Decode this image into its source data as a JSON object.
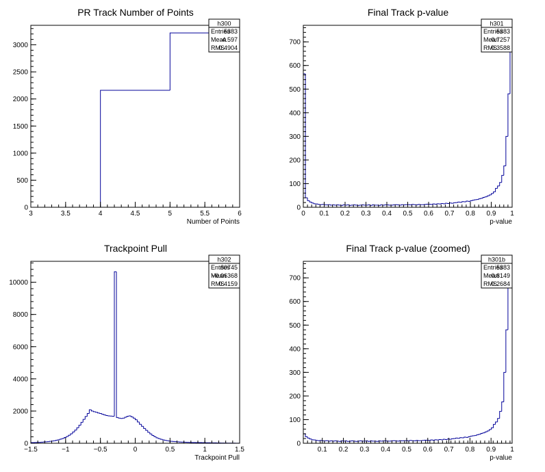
{
  "chart_data": [
    {
      "id": "h300",
      "type": "bar",
      "title": "PR Track Number of Points",
      "xlabel": "Number of Points",
      "ylabel": "",
      "xlim": [
        3,
        6
      ],
      "ylim": [
        0,
        3360
      ],
      "line_color": "#000099",
      "bin_edges": [
        3,
        4,
        5,
        6
      ],
      "values": [
        0,
        2160,
        3220
      ],
      "x_ticks": [
        {
          "v": 3,
          "label": "3"
        },
        {
          "v": 3.5,
          "label": "3.5"
        },
        {
          "v": 4,
          "label": "4"
        },
        {
          "v": 4.5,
          "label": "4.5"
        },
        {
          "v": 5,
          "label": "5"
        },
        {
          "v": 5.5,
          "label": "5.5"
        },
        {
          "v": 6,
          "label": "6"
        }
      ],
      "y_ticks": [
        {
          "v": 0,
          "label": "0"
        },
        {
          "v": 500,
          "label": "500"
        },
        {
          "v": 1000,
          "label": "1000"
        },
        {
          "v": 1500,
          "label": "1500"
        },
        {
          "v": 2000,
          "label": "2000"
        },
        {
          "v": 2500,
          "label": "2500"
        },
        {
          "v": 3000,
          "label": "3000"
        }
      ],
      "stats": {
        "name": "h300",
        "rows": [
          {
            "label": "Entries",
            "value": "5383"
          },
          {
            "label": "Mean",
            "value": "4.597"
          },
          {
            "label": "RMS",
            "value": "0.4904"
          }
        ]
      }
    },
    {
      "id": "h301",
      "type": "bar",
      "title": "Final Track p-value",
      "xlabel": "p-value",
      "ylabel": "",
      "xlim": [
        0,
        1
      ],
      "ylim": [
        0,
        770
      ],
      "line_color": "#000099",
      "bin_edges_uniform": {
        "start": 0,
        "width": 0.01,
        "count": 100
      },
      "values": [
        565,
        40,
        28,
        22,
        18,
        15,
        14,
        12,
        11,
        12,
        10,
        10,
        11,
        9,
        10,
        9,
        10,
        9,
        8,
        10,
        9,
        10,
        8,
        9,
        10,
        9,
        8,
        9,
        10,
        9,
        9,
        10,
        8,
        10,
        9,
        9,
        8,
        10,
        9,
        10,
        10,
        9,
        9,
        10,
        11,
        10,
        9,
        11,
        10,
        11,
        11,
        10,
        12,
        11,
        10,
        12,
        11,
        11,
        12,
        13,
        13,
        12,
        14,
        13,
        15,
        14,
        16,
        15,
        17,
        16,
        18,
        17,
        19,
        20,
        22,
        21,
        24,
        23,
        26,
        25,
        28,
        30,
        32,
        33,
        36,
        38,
        42,
        44,
        48,
        52,
        58,
        65,
        80,
        90,
        105,
        135,
        175,
        300,
        480,
        700
      ],
      "x_ticks": [
        {
          "v": 0,
          "label": "0"
        },
        {
          "v": 0.1,
          "label": "0.1"
        },
        {
          "v": 0.2,
          "label": "0.2"
        },
        {
          "v": 0.3,
          "label": "0.3"
        },
        {
          "v": 0.4,
          "label": "0.4"
        },
        {
          "v": 0.5,
          "label": "0.5"
        },
        {
          "v": 0.6,
          "label": "0.6"
        },
        {
          "v": 0.7,
          "label": "0.7"
        },
        {
          "v": 0.8,
          "label": "0.8"
        },
        {
          "v": 0.9,
          "label": "0.9"
        },
        {
          "v": 1,
          "label": "1"
        }
      ],
      "y_ticks": [
        {
          "v": 0,
          "label": "0"
        },
        {
          "v": 100,
          "label": "100"
        },
        {
          "v": 200,
          "label": "200"
        },
        {
          "v": 300,
          "label": "300"
        },
        {
          "v": 400,
          "label": "400"
        },
        {
          "v": 500,
          "label": "500"
        },
        {
          "v": 600,
          "label": "600"
        },
        {
          "v": 700,
          "label": "700"
        }
      ],
      "stats": {
        "name": "h301",
        "rows": [
          {
            "label": "Entries",
            "value": "5383"
          },
          {
            "label": "Mean",
            "value": "0.7257"
          },
          {
            "label": "RMS",
            "value": "0.3588"
          }
        ]
      }
    },
    {
      "id": "h302",
      "type": "bar",
      "title": "Trackpoint Pull",
      "xlabel": "Trackpoint Pull",
      "ylabel": "",
      "xlim": [
        -1.5,
        1.5
      ],
      "ylim": [
        0,
        11300
      ],
      "line_color": "#000099",
      "bin_edges_uniform": {
        "start": -1.5,
        "width": 0.03,
        "count": 100
      },
      "values": [
        40,
        45,
        50,
        55,
        60,
        70,
        80,
        90,
        100,
        120,
        140,
        160,
        190,
        220,
        260,
        300,
        360,
        420,
        500,
        590,
        700,
        820,
        960,
        1120,
        1300,
        1480,
        1660,
        1850,
        2080,
        2000,
        1960,
        1930,
        1880,
        1850,
        1800,
        1760,
        1720,
        1700,
        1690,
        1680,
        10650,
        1600,
        1560,
        1540,
        1560,
        1620,
        1680,
        1700,
        1640,
        1560,
        1460,
        1320,
        1180,
        1050,
        920,
        800,
        680,
        580,
        490,
        410,
        340,
        290,
        250,
        210,
        180,
        160,
        140,
        120,
        110,
        100,
        90,
        80,
        75,
        70,
        65,
        60,
        55,
        50,
        48,
        45,
        42,
        40,
        38,
        35,
        33,
        30,
        28,
        26,
        24,
        22,
        20,
        18,
        16,
        14,
        12,
        10,
        9,
        8,
        7,
        6
      ],
      "x_ticks": [
        {
          "v": -1.5,
          "label": "−1.5"
        },
        {
          "v": -1,
          "label": "−1"
        },
        {
          "v": -0.5,
          "label": "−0.5"
        },
        {
          "v": 0,
          "label": "0"
        },
        {
          "v": 0.5,
          "label": "0.5"
        },
        {
          "v": 1,
          "label": "1"
        },
        {
          "v": 1.5,
          "label": "1.5"
        }
      ],
      "y_ticks": [
        {
          "v": 0,
          "label": "0"
        },
        {
          "v": 2000,
          "label": "2000"
        },
        {
          "v": 4000,
          "label": "4000"
        },
        {
          "v": 6000,
          "label": "6000"
        },
        {
          "v": 8000,
          "label": "8000"
        },
        {
          "v": 10000,
          "label": "10000"
        }
      ],
      "stats": {
        "name": "h302",
        "rows": [
          {
            "label": "Entries",
            "value": "80745"
          },
          {
            "label": "Mean",
            "value": "−0.06368"
          },
          {
            "label": "RMS",
            "value": "0.4159"
          }
        ]
      }
    },
    {
      "id": "h301b",
      "type": "bar",
      "title": "Final Track p-value (zoomed)",
      "xlabel": "p-value",
      "ylabel": "",
      "xlim": [
        0.01,
        1
      ],
      "ylim": [
        0,
        770
      ],
      "line_color": "#000099",
      "bin_edges_uniform": {
        "start": 0.01,
        "width": 0.0099,
        "count": 100
      },
      "values": [
        40,
        28,
        22,
        18,
        15,
        14,
        12,
        11,
        12,
        10,
        10,
        11,
        9,
        10,
        9,
        10,
        9,
        8,
        10,
        9,
        10,
        8,
        9,
        10,
        9,
        8,
        9,
        10,
        9,
        9,
        10,
        8,
        10,
        9,
        9,
        8,
        10,
        9,
        10,
        10,
        9,
        9,
        10,
        11,
        10,
        9,
        11,
        10,
        11,
        11,
        10,
        12,
        11,
        10,
        12,
        11,
        11,
        12,
        13,
        13,
        12,
        14,
        13,
        15,
        14,
        16,
        15,
        17,
        16,
        18,
        17,
        19,
        20,
        22,
        21,
        24,
        23,
        26,
        25,
        28,
        30,
        32,
        33,
        36,
        38,
        42,
        44,
        48,
        52,
        58,
        65,
        80,
        90,
        105,
        135,
        175,
        300,
        480,
        700,
        700
      ],
      "x_ticks": [
        {
          "v": 0.1,
          "label": "0.1"
        },
        {
          "v": 0.2,
          "label": "0.2"
        },
        {
          "v": 0.3,
          "label": "0.3"
        },
        {
          "v": 0.4,
          "label": "0.4"
        },
        {
          "v": 0.5,
          "label": "0.5"
        },
        {
          "v": 0.6,
          "label": "0.6"
        },
        {
          "v": 0.7,
          "label": "0.7"
        },
        {
          "v": 0.8,
          "label": "0.8"
        },
        {
          "v": 0.9,
          "label": "0.9"
        },
        {
          "v": 1,
          "label": "1"
        }
      ],
      "y_ticks": [
        {
          "v": 0,
          "label": "0"
        },
        {
          "v": 100,
          "label": "100"
        },
        {
          "v": 200,
          "label": "200"
        },
        {
          "v": 300,
          "label": "300"
        },
        {
          "v": 400,
          "label": "400"
        },
        {
          "v": 500,
          "label": "500"
        },
        {
          "v": 600,
          "label": "600"
        },
        {
          "v": 700,
          "label": "700"
        }
      ],
      "stats": {
        "name": "h301b",
        "rows": [
          {
            "label": "Entries",
            "value": "5383"
          },
          {
            "label": "Mean",
            "value": "0.8149"
          },
          {
            "label": "RMS",
            "value": "0.2684"
          }
        ]
      }
    }
  ]
}
